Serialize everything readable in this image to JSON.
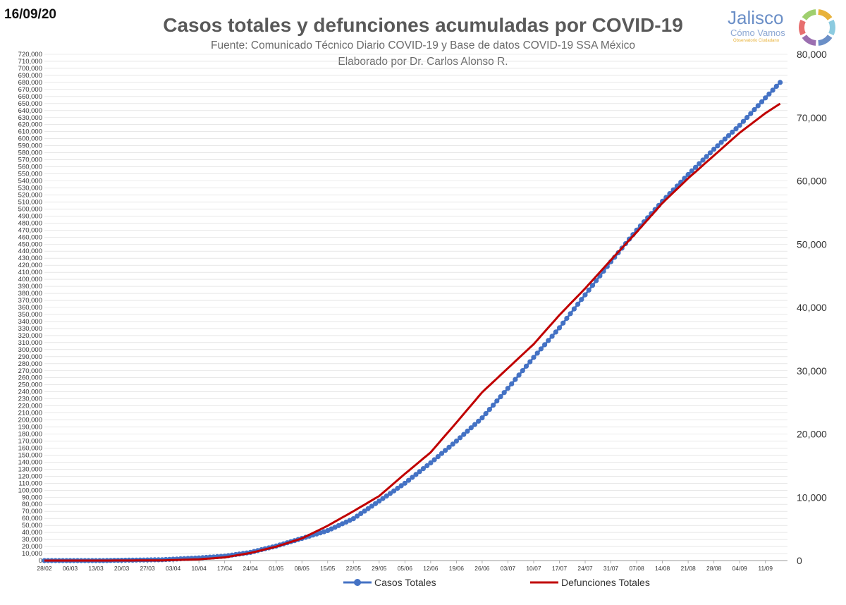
{
  "header": {
    "date": "16/09/20",
    "title": "Casos totales y defunciones acumuladas por COVID-19",
    "subtitle": "Fuente: Comunicado Técnico Diario COVID-19 y Base de datos COVID-19 SSA México",
    "author": "Elaborado por Dr. Carlos Alonso R."
  },
  "logo": {
    "name": "Jalisco",
    "sub": "Cómo Vamos",
    "tagline": "Observatorio Ciudadano",
    "ring_colors": [
      "#e8b23a",
      "#8ccbe0",
      "#6b8fc7",
      "#9b6fb0",
      "#e76f6f",
      "#9fcf6e"
    ]
  },
  "colors": {
    "casos": "#4472c4",
    "defunciones": "#c00000",
    "grid": "#d9d9d9",
    "axis_text": "#333333"
  },
  "chart_data": {
    "type": "line",
    "title": "Casos totales y defunciones acumuladas por COVID-19",
    "x_labels": [
      "28/02",
      "06/03",
      "13/03",
      "20/03",
      "27/03",
      "03/04",
      "10/04",
      "17/04",
      "24/04",
      "01/05",
      "08/05",
      "15/05",
      "22/05",
      "29/05",
      "05/06",
      "12/06",
      "19/06",
      "26/06",
      "03/07",
      "10/07",
      "17/07",
      "24/07",
      "31/07",
      "07/08",
      "14/08",
      "21/08",
      "28/08",
      "04/09",
      "11/09"
    ],
    "x_start_date": "2020-02-28",
    "x_end_date": "2020-09-15",
    "y_left": {
      "min": 0,
      "max": 720000,
      "step": 10000
    },
    "y_right": {
      "min": 0,
      "max": 80000,
      "step": 10000
    },
    "grid": true,
    "legend_position": "bottom",
    "series": [
      {
        "name": "Casos Totales",
        "axis": "left",
        "marker": "circle",
        "x": [
          "2020-02-28",
          "2020-03-15",
          "2020-03-31",
          "2020-04-10",
          "2020-04-17",
          "2020-04-24",
          "2020-05-01",
          "2020-05-08",
          "2020-05-15",
          "2020-05-22",
          "2020-05-29",
          "2020-06-05",
          "2020-06-12",
          "2020-06-19",
          "2020-06-26",
          "2020-07-03",
          "2020-07-10",
          "2020-07-17",
          "2020-07-24",
          "2020-07-31",
          "2020-08-07",
          "2020-08-14",
          "2020-08-21",
          "2020-08-28",
          "2020-09-04",
          "2020-09-11",
          "2020-09-15"
        ],
        "y": [
          1,
          50,
          1200,
          3800,
          6300,
          11600,
          20700,
          31500,
          42600,
          59600,
          84600,
          110000,
          139000,
          170000,
          203000,
          245000,
          289000,
          331000,
          378000,
          425000,
          470000,
          511000,
          549000,
          585000,
          619000,
          658000,
          680000
        ]
      },
      {
        "name": "Defunciones Totales",
        "axis": "right",
        "marker": "none",
        "x": [
          "2020-02-28",
          "2020-03-15",
          "2020-03-31",
          "2020-04-10",
          "2020-04-17",
          "2020-04-24",
          "2020-05-01",
          "2020-05-08",
          "2020-05-15",
          "2020-05-22",
          "2020-05-29",
          "2020-06-05",
          "2020-06-12",
          "2020-06-19",
          "2020-06-26",
          "2020-07-03",
          "2020-07-10",
          "2020-07-17",
          "2020-07-24",
          "2020-07-31",
          "2020-08-07",
          "2020-08-14",
          "2020-08-21",
          "2020-08-28",
          "2020-09-04",
          "2020-09-11",
          "2020-09-15"
        ],
        "y": [
          0,
          0,
          30,
          200,
          500,
          1200,
          2200,
          3500,
          5500,
          7800,
          10200,
          13700,
          17100,
          21800,
          26600,
          30400,
          34200,
          38800,
          43000,
          47500,
          51900,
          56500,
          60400,
          64000,
          67600,
          70700,
          72200
        ]
      }
    ]
  }
}
